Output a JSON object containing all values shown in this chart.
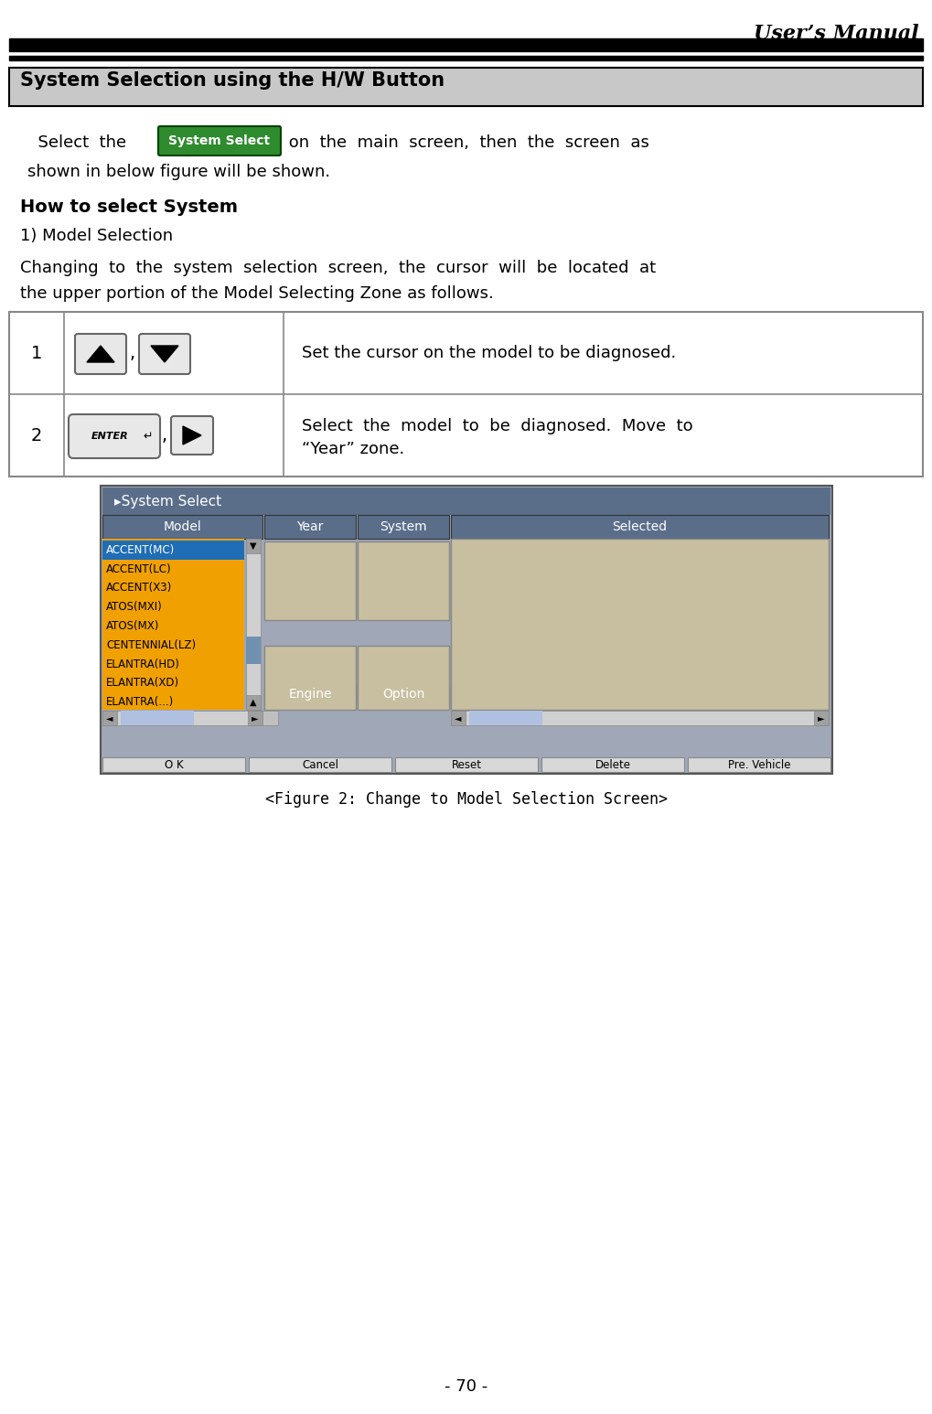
{
  "page_title": "User’s Manual",
  "section_title": "System Selection using the H/W Button",
  "section_bg": "#c8c8c8",
  "body_bg": "#ffffff",
  "intro_text_1": "Select  the",
  "button_label": "System Select",
  "button_bg": "#2e8b2e",
  "button_fg": "#ffffff",
  "intro_text_2": " on  the  main  screen,  then  the  screen  as\nshown in below figure will be shown.",
  "how_to_title": "How to select System",
  "sub_title": "1) Model Selection",
  "paragraph": "Changing  to  the  system  selection  screen,  the  cursor  will  be  located  at\nthe upper portion of the Model Selecting Zone as follows.",
  "table_rows": [
    {
      "num": "1",
      "desc": "Set the cursor on the model to be diagnosed.",
      "buttons": [
        "up_down"
      ]
    },
    {
      "num": "2",
      "desc": "Select  the  model  to  be  diagnosed.  Move  to\n“Year” zone.",
      "buttons": [
        "enter_right"
      ]
    }
  ],
  "figure_caption": "<Figure 2: Change to Model Selection Screen>",
  "page_num": "- 70 -",
  "screen_title": "▸System Select",
  "screen_cols": [
    "Model",
    "Year",
    "System",
    "Selected"
  ],
  "model_list": [
    "ACCENT(MC)",
    "ACCENT(LC)",
    "ACCENT(X3)",
    "ATOS(MXI)",
    "ATOS(MX)",
    "CENTENNIAL(LZ)",
    "ELANTRA(HD)",
    "ELANTRA(XD)",
    "ELANTRA(...)"
  ],
  "model_selected_idx": 0,
  "model_highlighted_color": "#f0a000",
  "model_selected_color": "#1e6db5",
  "screen_header_bg": "#5a6e8a",
  "screen_header_fg": "#ffffff",
  "screen_bg": "#c8bfa0",
  "screen_outer_bg": "#a0a8b8",
  "bottom_buttons": [
    "O K",
    "Cancel",
    "Reset",
    "Delete",
    "Pre. Vehicle"
  ]
}
